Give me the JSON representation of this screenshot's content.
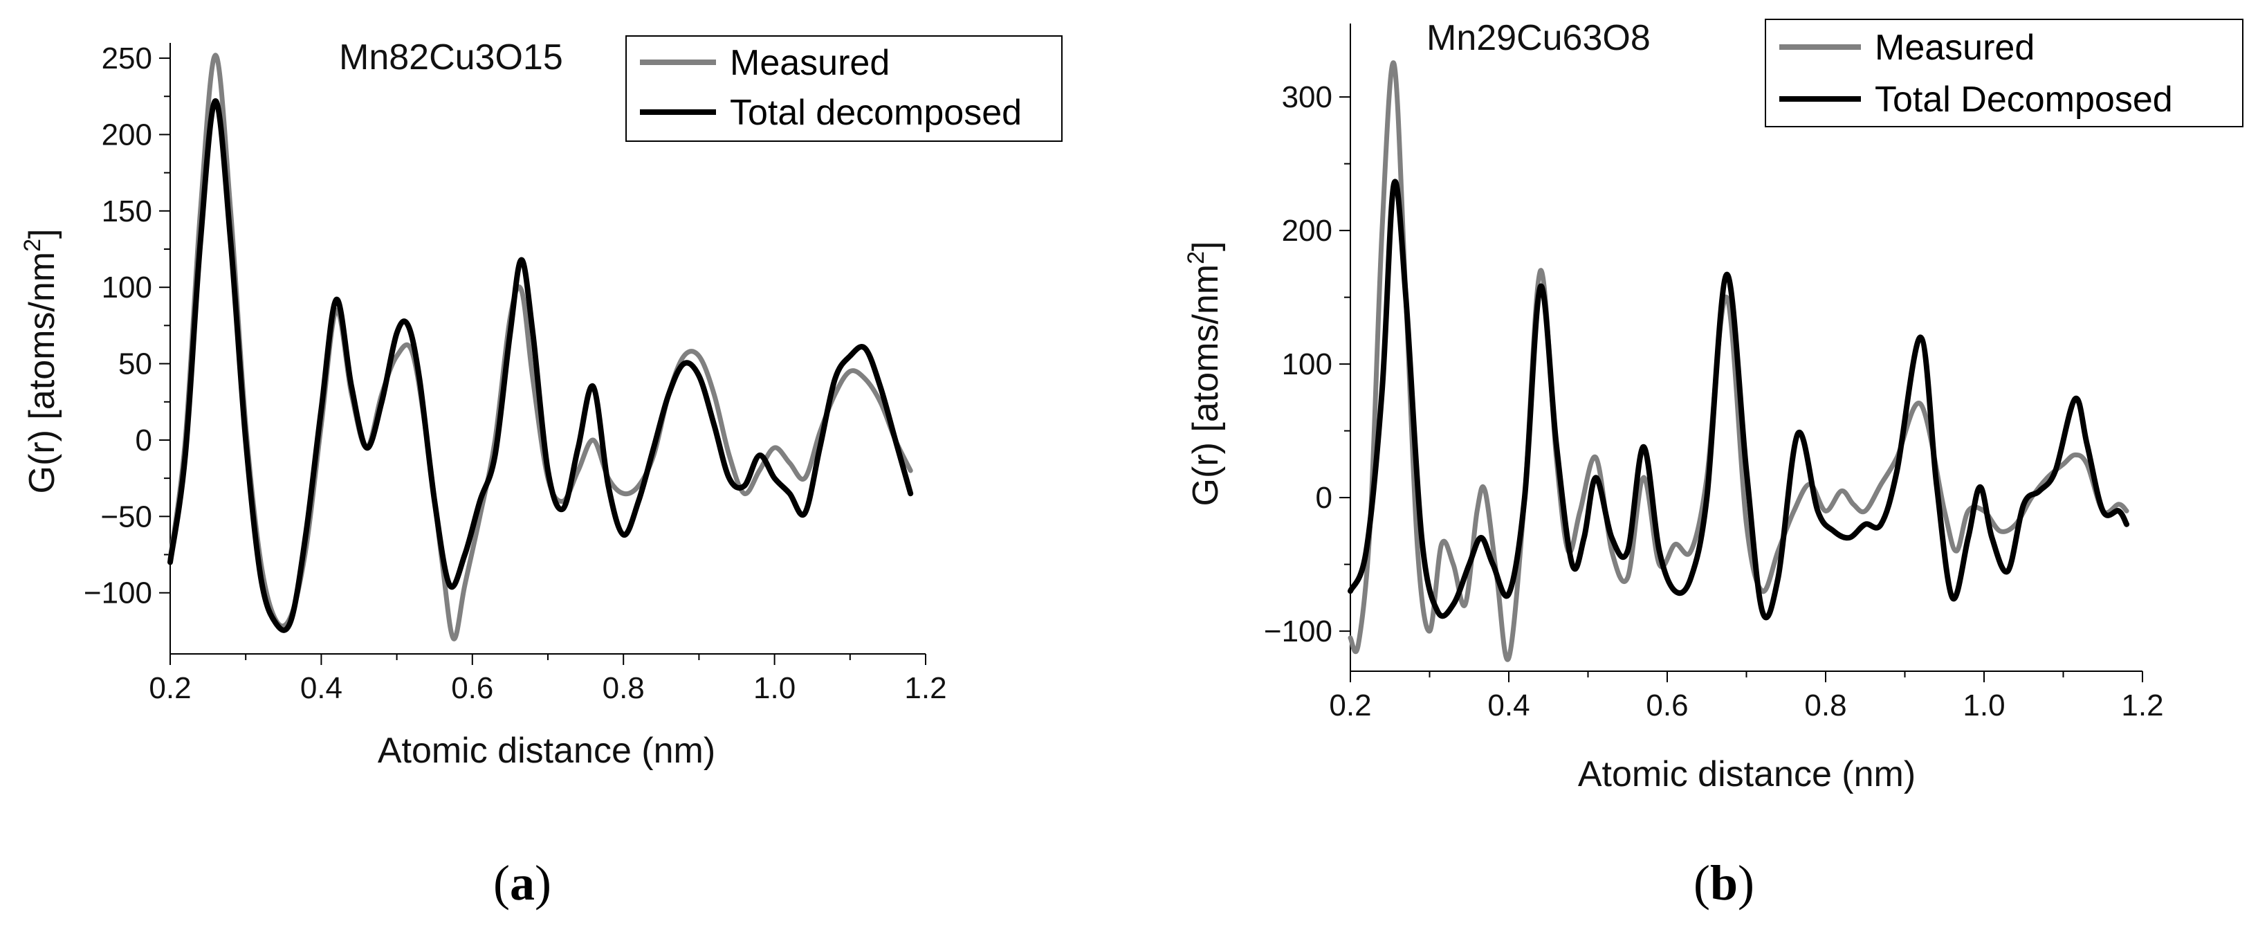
{
  "colors": {
    "measured": "#808080",
    "decomposed": "#000000"
  },
  "chart_data": [
    {
      "panel": "(a)",
      "panel_letter": "a",
      "type": "line",
      "title": "Mn82Cu3O15",
      "xlabel": "Atomic distance (nm)",
      "ylabel": "G(r) [atoms/nm",
      "ylabel_sup": "2",
      "ylabel_close": "]",
      "xlim": [
        0.2,
        1.2
      ],
      "ylim": [
        -140,
        260
      ],
      "xticks": [
        0.2,
        0.4,
        0.6,
        0.8,
        1.0,
        1.2
      ],
      "xtick_labels": [
        "0.2",
        "0.4",
        "0.6",
        "0.8",
        "1.0",
        "1.2"
      ],
      "yticks": [
        -100,
        -50,
        0,
        50,
        100,
        150,
        200,
        250
      ],
      "ytick_labels": [
        "−100",
        "−50",
        "0",
        "50",
        "100",
        "150",
        "200",
        "250"
      ],
      "legend": {
        "placement": "top-right",
        "entries": [
          "Measured",
          "Total decomposed"
        ]
      },
      "series": [
        {
          "name": "Measured",
          "color": "#808080",
          "x": [
            0.2,
            0.22,
            0.24,
            0.26,
            0.28,
            0.3,
            0.32,
            0.34,
            0.36,
            0.38,
            0.4,
            0.42,
            0.44,
            0.46,
            0.48,
            0.5,
            0.52,
            0.54,
            0.56,
            0.575,
            0.59,
            0.61,
            0.63,
            0.65,
            0.665,
            0.68,
            0.7,
            0.72,
            0.74,
            0.76,
            0.78,
            0.8,
            0.82,
            0.84,
            0.86,
            0.88,
            0.9,
            0.92,
            0.94,
            0.96,
            0.98,
            1.0,
            1.02,
            1.04,
            1.06,
            1.08,
            1.1,
            1.12,
            1.14,
            1.16,
            1.18
          ],
          "y": [
            -78,
            0,
            150,
            252,
            150,
            10,
            -80,
            -118,
            -115,
            -70,
            10,
            85,
            30,
            -5,
            30,
            55,
            58,
            0,
            -80,
            -130,
            -95,
            -50,
            0,
            80,
            98,
            40,
            -25,
            -40,
            -20,
            0,
            -25,
            -35,
            -30,
            -10,
            30,
            55,
            55,
            30,
            -10,
            -35,
            -20,
            -5,
            -15,
            -25,
            5,
            30,
            45,
            40,
            25,
            0,
            -20
          ]
        },
        {
          "name": "Total decomposed",
          "color": "#000000",
          "x": [
            0.2,
            0.22,
            0.24,
            0.26,
            0.28,
            0.3,
            0.32,
            0.34,
            0.36,
            0.38,
            0.4,
            0.42,
            0.44,
            0.46,
            0.48,
            0.5,
            0.515,
            0.53,
            0.55,
            0.57,
            0.59,
            0.61,
            0.63,
            0.65,
            0.665,
            0.68,
            0.7,
            0.72,
            0.74,
            0.76,
            0.78,
            0.8,
            0.82,
            0.84,
            0.86,
            0.88,
            0.9,
            0.92,
            0.94,
            0.96,
            0.98,
            1.0,
            1.02,
            1.04,
            1.06,
            1.08,
            1.1,
            1.12,
            1.14,
            1.16,
            1.18
          ],
          "y": [
            -80,
            -10,
            130,
            222,
            130,
            0,
            -90,
            -120,
            -118,
            -60,
            20,
            92,
            35,
            -5,
            25,
            70,
            75,
            40,
            -40,
            -95,
            -75,
            -40,
            -10,
            70,
            118,
            70,
            -20,
            -45,
            -5,
            35,
            -30,
            -62,
            -40,
            -5,
            30,
            50,
            42,
            10,
            -25,
            -30,
            -10,
            -25,
            -35,
            -48,
            -5,
            40,
            55,
            60,
            35,
            0,
            -35
          ]
        }
      ]
    },
    {
      "panel": "(b)",
      "panel_letter": "b",
      "type": "line",
      "title": "Mn29Cu63O8",
      "xlabel": "Atomic distance (nm)",
      "ylabel": "G(r) [atoms/nm",
      "ylabel_sup": "2",
      "ylabel_close": "]",
      "xlim": [
        0.2,
        1.2
      ],
      "ylim": [
        -130,
        355
      ],
      "xticks": [
        0.2,
        0.4,
        0.6,
        0.8,
        1.0,
        1.2
      ],
      "xtick_labels": [
        "0.2",
        "0.4",
        "0.6",
        "0.8",
        "1.0",
        "1.2"
      ],
      "yticks": [
        -100,
        0,
        100,
        200,
        300
      ],
      "ytick_labels": [
        "−100",
        "0",
        "100",
        "200",
        "300"
      ],
      "legend": {
        "placement": "top-right",
        "entries": [
          "Measured",
          "Total Decomposed"
        ]
      },
      "series": [
        {
          "name": "Measured",
          "color": "#808080",
          "x": [
            0.2,
            0.21,
            0.225,
            0.24,
            0.255,
            0.27,
            0.285,
            0.3,
            0.315,
            0.33,
            0.345,
            0.36,
            0.37,
            0.385,
            0.4,
            0.42,
            0.44,
            0.46,
            0.475,
            0.49,
            0.51,
            0.53,
            0.55,
            0.57,
            0.59,
            0.61,
            0.63,
            0.65,
            0.675,
            0.7,
            0.72,
            0.74,
            0.76,
            0.78,
            0.8,
            0.82,
            0.835,
            0.85,
            0.87,
            0.89,
            0.92,
            0.95,
            0.965,
            0.98,
            1.0,
            1.02,
            1.04,
            1.06,
            1.08,
            1.1,
            1.115,
            1.13,
            1.15,
            1.17,
            1.18
          ],
          "y": [
            -105,
            -110,
            -20,
            200,
            325,
            150,
            -40,
            -100,
            -35,
            -50,
            -80,
            -10,
            5,
            -60,
            -120,
            0,
            170,
            30,
            -40,
            -10,
            30,
            -40,
            -60,
            15,
            -50,
            -35,
            -40,
            15,
            150,
            -20,
            -70,
            -40,
            -10,
            10,
            -10,
            5,
            -5,
            -10,
            10,
            30,
            70,
            -10,
            -40,
            -10,
            -10,
            -25,
            -20,
            0,
            15,
            25,
            32,
            25,
            -10,
            -5,
            -10
          ]
        },
        {
          "name": "Total Decomposed",
          "color": "#000000",
          "x": [
            0.2,
            0.22,
            0.24,
            0.255,
            0.27,
            0.29,
            0.31,
            0.33,
            0.35,
            0.365,
            0.38,
            0.4,
            0.42,
            0.44,
            0.46,
            0.48,
            0.495,
            0.51,
            0.53,
            0.55,
            0.57,
            0.59,
            0.61,
            0.63,
            0.65,
            0.675,
            0.7,
            0.72,
            0.74,
            0.765,
            0.79,
            0.81,
            0.83,
            0.85,
            0.87,
            0.89,
            0.92,
            0.94,
            0.96,
            0.98,
            0.995,
            1.01,
            1.03,
            1.05,
            1.07,
            1.09,
            1.115,
            1.13,
            1.15,
            1.17,
            1.18
          ],
          "y": [
            -70,
            -40,
            80,
            235,
            150,
            -30,
            -85,
            -80,
            -50,
            -30,
            -50,
            -72,
            0,
            158,
            40,
            -50,
            -30,
            15,
            -30,
            -40,
            38,
            -40,
            -70,
            -60,
            0,
            167,
            20,
            -85,
            -60,
            48,
            -10,
            -25,
            -30,
            -20,
            -20,
            20,
            120,
            10,
            -75,
            -30,
            8,
            -30,
            -55,
            -5,
            5,
            20,
            74,
            40,
            -10,
            -10,
            -20
          ]
        }
      ]
    }
  ]
}
